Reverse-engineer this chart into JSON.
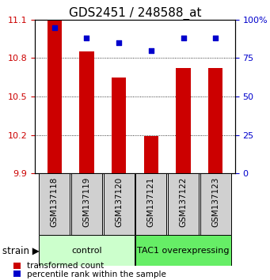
{
  "title": "GDS2451 / 248588_at",
  "samples": [
    "GSM137118",
    "GSM137119",
    "GSM137120",
    "GSM137121",
    "GSM137122",
    "GSM137123"
  ],
  "bar_values": [
    11.1,
    10.85,
    10.65,
    10.19,
    10.72,
    10.72
  ],
  "dot_values": [
    95,
    88,
    85,
    80,
    88,
    88
  ],
  "bar_bottom": 9.9,
  "ylim_left": [
    9.9,
    11.1
  ],
  "ylim_right": [
    0,
    100
  ],
  "yticks_left": [
    9.9,
    10.2,
    10.5,
    10.8,
    11.1
  ],
  "yticks_right": [
    0,
    25,
    50,
    75,
    100
  ],
  "bar_color": "#cc0000",
  "dot_color": "#0000cc",
  "groups": [
    {
      "label": "control",
      "indices": [
        0,
        1,
        2
      ],
      "color": "#ccffcc"
    },
    {
      "label": "TAC1 overexpressing",
      "indices": [
        3,
        4,
        5
      ],
      "color": "#66ee66"
    }
  ],
  "group_label": "strain",
  "tick_label_color_left": "#cc0000",
  "tick_label_color_right": "#0000cc",
  "legend_bar_label": "transformed count",
  "legend_dot_label": "percentile rank within the sample"
}
